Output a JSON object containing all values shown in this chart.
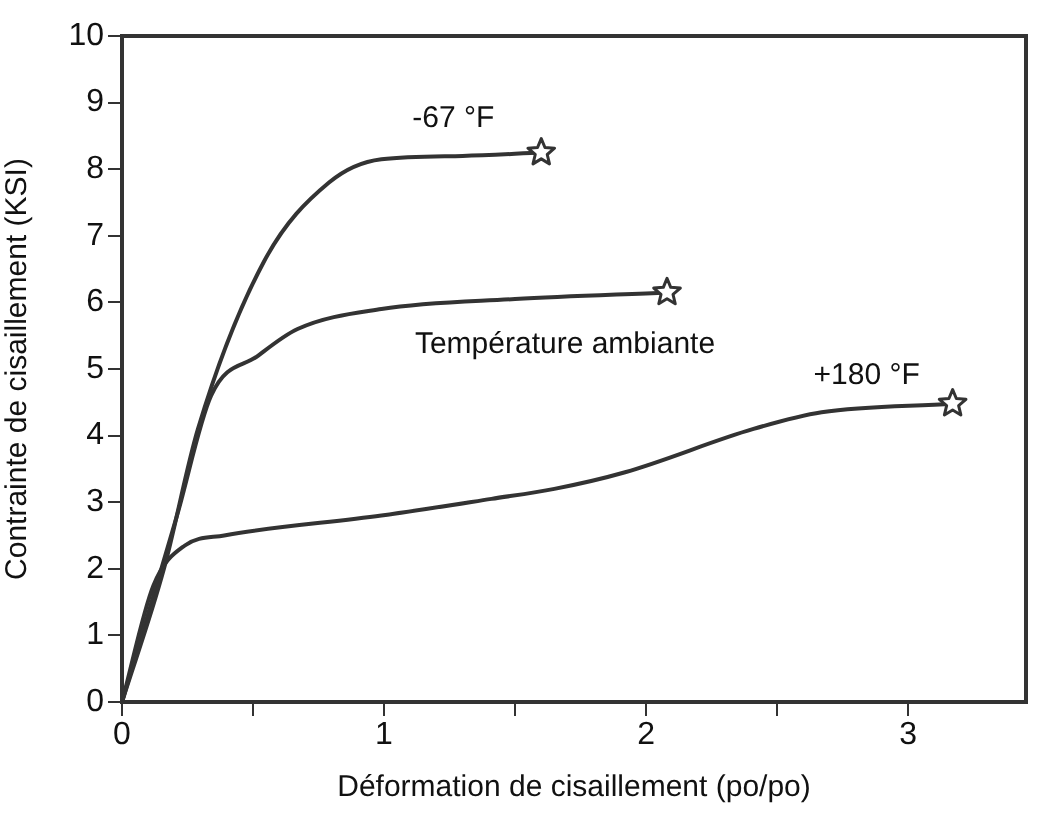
{
  "chart_data": {
    "type": "line",
    "xlabel": "Déformation de cisaillement (po/po)",
    "ylabel": "Contrainte de cisaillement (KSI)",
    "xlim": [
      0,
      3.45
    ],
    "xticks": [
      0,
      {
        "value": 0.5,
        "label": null
      },
      1,
      {
        "value": 1.5,
        "label": null
      },
      2,
      {
        "value": 2.5,
        "label": null
      },
      3
    ],
    "ylim": [
      0,
      10
    ],
    "yticks": [
      0,
      1,
      2,
      3,
      4,
      5,
      6,
      7,
      8,
      9,
      10
    ],
    "grid": false,
    "legend": false,
    "marker": "none",
    "line_style": "solid",
    "series": [
      {
        "name": "-67 °F",
        "color": "#333333",
        "x": [
          0,
          0.16,
          0.29,
          0.54,
          0.79,
          0.99,
          1.3,
          1.6
        ],
        "values": [
          0,
          2.0,
          4.1,
          6.6,
          7.8,
          8.15,
          8.2,
          8.25
        ]
      },
      {
        "name": "Température ambiante",
        "color": "#333333",
        "x": [
          0,
          0.21,
          0.34,
          0.52,
          0.67,
          0.99,
          1.5,
          2.08
        ],
        "values": [
          0,
          2.8,
          4.6,
          5.2,
          5.6,
          5.9,
          6.05,
          6.15
        ]
      },
      {
        "name": "+180 °F",
        "color": "#333333",
        "x": [
          0,
          0.12,
          0.24,
          0.39,
          0.99,
          1.41,
          1.65,
          1.92,
          2.41,
          2.67,
          3.17
        ],
        "values": [
          0,
          1.75,
          2.35,
          2.5,
          2.8,
          3.05,
          3.2,
          3.45,
          4.1,
          4.35,
          4.48
        ]
      },
      {
        "type": "scatter",
        "marker": "star",
        "color": "#333333",
        "x": [
          1.6,
          2.08,
          3.17
        ],
        "values": [
          8.25,
          6.15,
          4.48
        ]
      }
    ]
  }
}
